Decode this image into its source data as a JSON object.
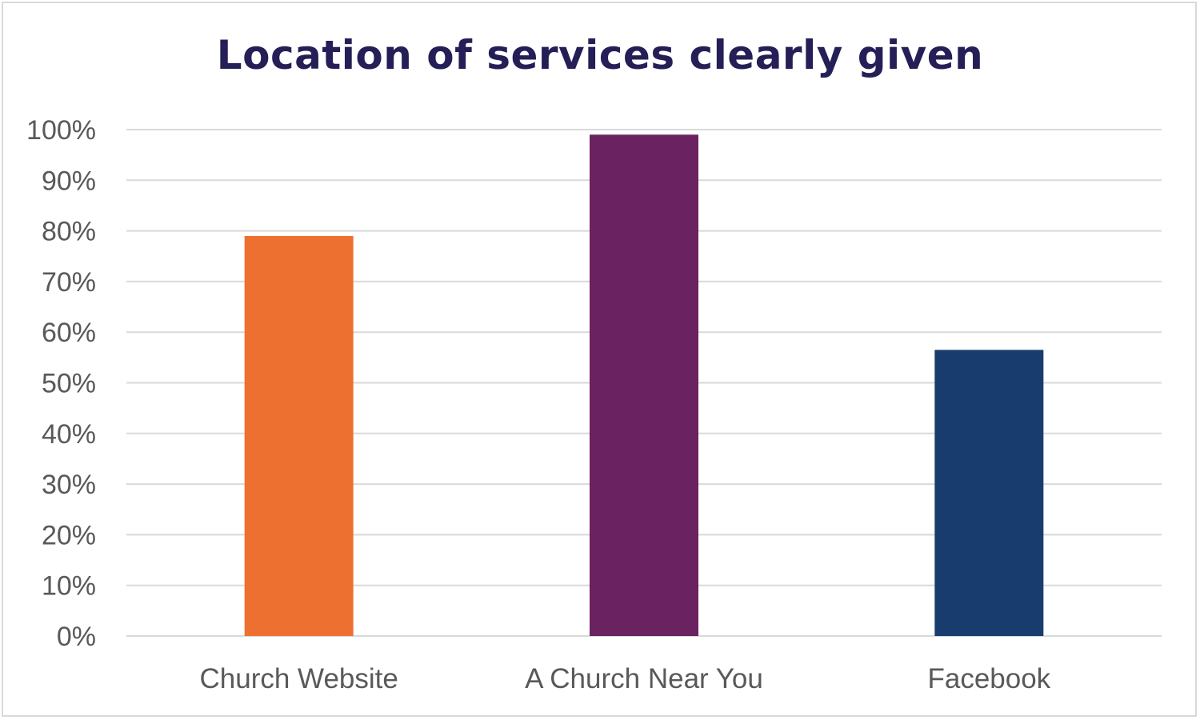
{
  "chart_data": {
    "type": "bar",
    "title": "Location of services clearly given",
    "xlabel": "",
    "ylabel": "",
    "categories": [
      "Church Website",
      "A Church Near You",
      "Facebook"
    ],
    "values": [
      0.79,
      0.99,
      0.565
    ],
    "colors": [
      "#ed7031",
      "#6a2260",
      "#183c6e"
    ],
    "ylim": [
      0,
      1
    ],
    "yticks": [
      0,
      0.1,
      0.2,
      0.3,
      0.4,
      0.5,
      0.6,
      0.7,
      0.8,
      0.9,
      1.0
    ],
    "ytick_labels": [
      "0%",
      "10%",
      "20%",
      "30%",
      "40%",
      "50%",
      "60%",
      "70%",
      "80%",
      "90%",
      "100%"
    ],
    "grid": true,
    "legend": "none"
  }
}
